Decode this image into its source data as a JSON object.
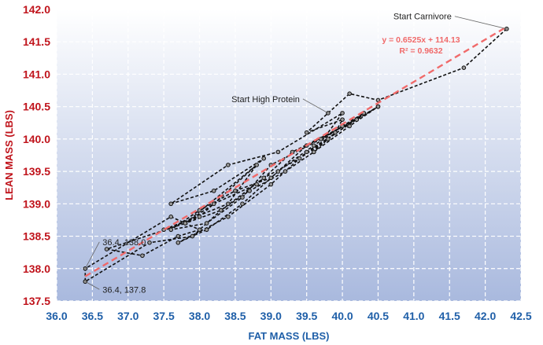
{
  "chart_data": {
    "type": "scatter",
    "xlabel": "FAT MASS (LBS)",
    "ylabel": "LEAN MASS (LBS)",
    "xlim": [
      36.0,
      42.5
    ],
    "ylim": [
      137.5,
      142.0
    ],
    "xticks": [
      "36.0",
      "36.5",
      "37.0",
      "37.5",
      "38.0",
      "38.5",
      "39.0",
      "39.5",
      "40.0",
      "40.5",
      "41.0",
      "41.5",
      "42.0",
      "42.5"
    ],
    "yticks": [
      "137.5",
      "138.0",
      "138.5",
      "139.0",
      "139.5",
      "140.0",
      "140.5",
      "141.0",
      "141.5",
      "142.0"
    ],
    "grid": true,
    "series": [
      {
        "style": "dashed-line-with-markers",
        "color": "#111111",
        "points": [
          [
            42.3,
            141.7
          ],
          [
            41.7,
            141.1
          ],
          [
            40.5,
            140.6
          ],
          [
            40.1,
            140.7
          ],
          [
            39.8,
            140.4
          ],
          [
            39.5,
            140.1
          ],
          [
            40.0,
            140.3
          ],
          [
            39.9,
            140.1
          ],
          [
            39.6,
            139.8
          ],
          [
            40.0,
            140.4
          ],
          [
            39.1,
            139.8
          ],
          [
            38.4,
            139.6
          ],
          [
            37.6,
            139.0
          ],
          [
            38.2,
            139.2
          ],
          [
            38.9,
            139.7
          ],
          [
            38.0,
            138.8
          ],
          [
            37.5,
            138.6
          ],
          [
            38.4,
            139.0
          ],
          [
            38.8,
            139.6
          ],
          [
            37.8,
            138.7
          ],
          [
            36.7,
            138.3
          ],
          [
            37.2,
            138.2
          ],
          [
            37.7,
            138.5
          ],
          [
            38.0,
            138.6
          ],
          [
            37.6,
            138.8
          ],
          [
            36.4,
            138.0
          ],
          [
            36.4,
            137.8
          ],
          [
            37.3,
            138.4
          ],
          [
            37.9,
            138.5
          ],
          [
            38.3,
            138.9
          ],
          [
            38.7,
            139.2
          ],
          [
            39.2,
            139.5
          ],
          [
            39.6,
            139.8
          ],
          [
            40.1,
            140.2
          ],
          [
            40.5,
            140.5
          ],
          [
            39.7,
            140.0
          ],
          [
            39.0,
            139.6
          ],
          [
            38.6,
            139.1
          ],
          [
            38.1,
            138.7
          ],
          [
            37.6,
            138.6
          ],
          [
            38.0,
            138.9
          ],
          [
            38.5,
            139.2
          ],
          [
            39.0,
            139.4
          ],
          [
            39.5,
            139.9
          ],
          [
            40.2,
            140.3
          ],
          [
            39.3,
            139.8
          ],
          [
            38.8,
            139.3
          ],
          [
            38.2,
            139.0
          ],
          [
            37.8,
            138.7
          ],
          [
            38.3,
            138.9
          ],
          [
            38.9,
            139.4
          ],
          [
            39.4,
            139.7
          ],
          [
            39.8,
            140.0
          ],
          [
            40.3,
            140.4
          ],
          [
            40.0,
            140.2
          ],
          [
            39.6,
            139.9
          ],
          [
            39.1,
            139.5
          ],
          [
            38.6,
            139.0
          ],
          [
            38.1,
            138.6
          ],
          [
            37.7,
            138.4
          ],
          [
            38.4,
            138.8
          ],
          [
            39.0,
            139.3
          ],
          [
            39.5,
            139.8
          ],
          [
            40.2,
            140.3
          ],
          [
            40.5,
            140.5
          ]
        ]
      }
    ],
    "trendline": {
      "style": "dashed",
      "color": "#f06a6a",
      "slope": 0.6525,
      "intercept": 114.13,
      "x_range": [
        36.4,
        42.3
      ],
      "equation": "y = 0.6525x + 114.13",
      "r2": "R² = 0.9632"
    },
    "annotations": [
      {
        "text": "Start Carnivore",
        "x": 42.3,
        "y": 141.7
      },
      {
        "text": "Start High Protein",
        "x": 39.8,
        "y": 140.4
      },
      {
        "text": "36.4, 138.0",
        "x": 36.4,
        "y": 138.0
      },
      {
        "text": "36.4, 137.8",
        "x": 36.4,
        "y": 137.8
      }
    ],
    "colors": {
      "y_axis_text": "#c0141c",
      "x_axis_text": "#1f5fa8",
      "plot_bg_top": "#ffffff",
      "plot_bg_bottom": "#a9b9de"
    }
  }
}
